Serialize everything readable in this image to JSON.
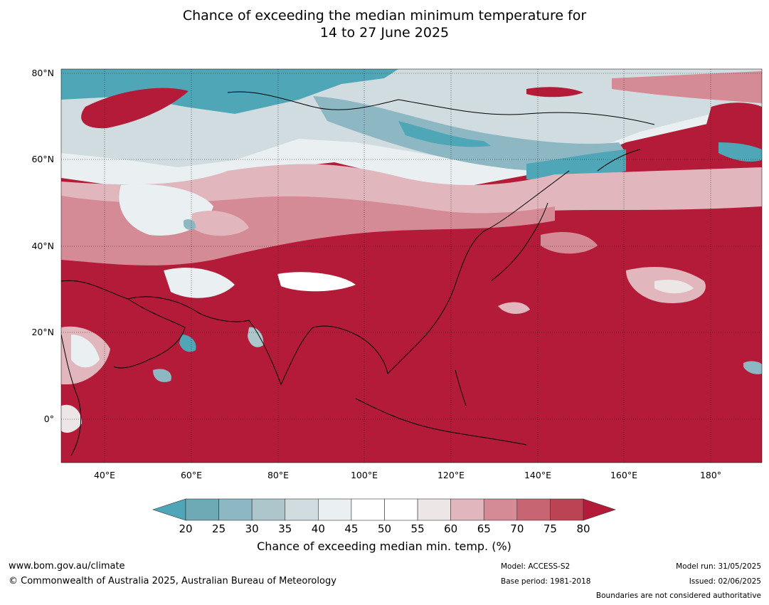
{
  "title": {
    "line1": "Chance of exceeding the median minimum temperature for",
    "line2": "14 to 27 June 2025"
  },
  "axes": {
    "lat_labels": [
      "80°N",
      "60°N",
      "40°N",
      "20°N",
      "0°"
    ],
    "lon_labels": [
      "40°E",
      "60°E",
      "80°E",
      "100°E",
      "120°E",
      "140°E",
      "160°E",
      "180°"
    ]
  },
  "colorbar": {
    "title": "Chance of exceeding median min. temp. (%)",
    "ticks": [
      "20",
      "25",
      "30",
      "35",
      "40",
      "45",
      "50",
      "55",
      "60",
      "65",
      "70",
      "75",
      "80"
    ],
    "colors": [
      "#4ea6b6",
      "#6ea9b6",
      "#8db8c3",
      "#adc6cc",
      "#d0dcdf",
      "#eaf0f2",
      "#ffffff",
      "#ffffff",
      "#ece6e7",
      "#e2b6bd",
      "#d58b96",
      "#c86572",
      "#bb4454",
      "#b31b39"
    ],
    "under_color": "#4ea6b6",
    "over_color": "#b31b39"
  },
  "footer": {
    "url": "www.bom.gov.au/climate",
    "copyright": "© Commonwealth of Australia 2025, Australian Bureau of Meteorology",
    "model": "Model: ACCESS-S2",
    "base_period": "Base period: 1981-2018",
    "model_run": "Model run: 31/05/2025",
    "issued": "Issued: 02/06/2025",
    "boundaries": "Boundaries are not considered authoritative"
  },
  "map": {
    "region_extent": {
      "lon": [
        30,
        192
      ],
      "lat": [
        -10,
        81
      ]
    },
    "background_color": "#b31b39",
    "gridline_color": "#000000"
  }
}
